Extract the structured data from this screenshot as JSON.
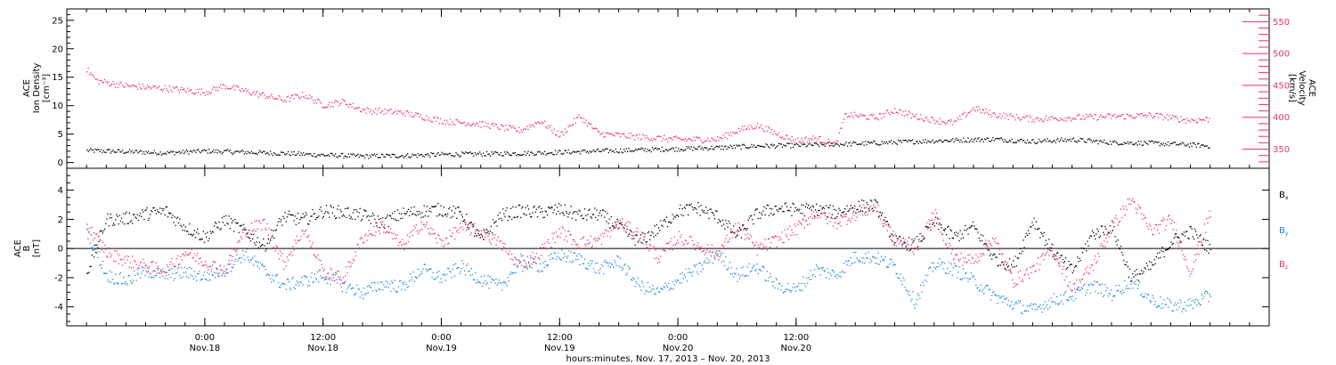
{
  "chart_data": [
    {
      "type": "scatter",
      "panel": "top",
      "ylabel_lines": [
        "ACE",
        "Ion Density",
        "[cm⁻³]"
      ],
      "ylim": [
        -1,
        27
      ],
      "yticks": [
        0,
        5,
        10,
        15,
        20,
        25
      ],
      "y2label_lines": [
        "ACE",
        "Velocity",
        "[km/s]"
      ],
      "y2lim": [
        320,
        570
      ],
      "y2ticks": [
        350,
        400,
        450,
        500,
        550
      ],
      "series": [
        {
          "axis": "left",
          "color": "#000000",
          "points": [
            [
              0,
              2.2
            ],
            [
              4,
              2.0
            ],
            [
              8,
              1.8
            ],
            [
              12,
              2.1
            ],
            [
              16,
              1.9
            ],
            [
              20,
              1.7
            ],
            [
              24,
              1.4
            ],
            [
              28,
              1.2
            ],
            [
              32,
              1.3
            ],
            [
              36,
              1.5
            ],
            [
              40,
              1.6
            ],
            [
              44,
              1.7
            ],
            [
              48,
              1.9
            ],
            [
              52,
              2.1
            ],
            [
              56,
              2.3
            ],
            [
              60,
              2.5
            ],
            [
              64,
              2.7
            ],
            [
              68,
              3.0
            ],
            [
              72,
              3.1
            ],
            [
              76,
              3.3
            ],
            [
              80,
              3.5
            ],
            [
              84,
              3.8
            ],
            [
              88,
              4.0
            ],
            [
              92,
              4.2
            ],
            [
              96,
              3.8
            ],
            [
              100,
              4.1
            ],
            [
              104,
              3.6
            ],
            [
              108,
              3.5
            ],
            [
              112,
              3.2
            ],
            [
              114,
              3.0
            ]
          ]
        },
        {
          "axis": "right",
          "color": "#ee3366",
          "points": [
            [
              0,
              475
            ],
            [
              1,
              458
            ],
            [
              4,
              450
            ],
            [
              8,
              446
            ],
            [
              12,
              440
            ],
            [
              14,
              450
            ],
            [
              16,
              442
            ],
            [
              20,
              428
            ],
            [
              22,
              436
            ],
            [
              24,
              420
            ],
            [
              26,
              425
            ],
            [
              28,
              412
            ],
            [
              32,
              408
            ],
            [
              34,
              402
            ],
            [
              36,
              395
            ],
            [
              40,
              390
            ],
            [
              44,
              380
            ],
            [
              46,
              395
            ],
            [
              48,
              372
            ],
            [
              50,
              402
            ],
            [
              52,
              375
            ],
            [
              56,
              370
            ],
            [
              60,
              366
            ],
            [
              64,
              366
            ],
            [
              66,
              380
            ],
            [
              68,
              388
            ],
            [
              70,
              375
            ],
            [
              72,
              364
            ],
            [
              74,
              368
            ],
            [
              76,
              358
            ],
            [
              77,
              405
            ],
            [
              80,
              400
            ],
            [
              82,
              412
            ],
            [
              84,
              402
            ],
            [
              86,
              396
            ],
            [
              88,
              392
            ],
            [
              90,
              415
            ],
            [
              92,
              405
            ],
            [
              96,
              398
            ],
            [
              100,
              400
            ],
            [
              104,
              402
            ],
            [
              108,
              404
            ],
            [
              112,
              396
            ],
            [
              114,
              398
            ]
          ]
        }
      ]
    },
    {
      "type": "scatter",
      "panel": "bottom",
      "ylabel_lines": [
        "ACE",
        "B",
        "[nT]"
      ],
      "ylim": [
        -5.3,
        5.5
      ],
      "yticks": [
        -4,
        -2,
        0,
        2,
        4
      ],
      "zero_line": true,
      "series": [
        {
          "name": "B",
          "sub": "x",
          "color": "#000000",
          "points": [
            [
              0,
              -1.6
            ],
            [
              2,
              2.0
            ],
            [
              4,
              2.1
            ],
            [
              6,
              2.4
            ],
            [
              8,
              2.6
            ],
            [
              10,
              1.5
            ],
            [
              12,
              0.8
            ],
            [
              14,
              2.0
            ],
            [
              16,
              1.2
            ],
            [
              18,
              0.2
            ],
            [
              20,
              2.2
            ],
            [
              22,
              2.0
            ],
            [
              24,
              2.6
            ],
            [
              26,
              2.5
            ],
            [
              28,
              2.3
            ],
            [
              30,
              1.8
            ],
            [
              32,
              2.4
            ],
            [
              34,
              2.6
            ],
            [
              36,
              2.7
            ],
            [
              38,
              2.4
            ],
            [
              40,
              0.6
            ],
            [
              42,
              2.3
            ],
            [
              44,
              2.6
            ],
            [
              46,
              2.5
            ],
            [
              48,
              2.7
            ],
            [
              50,
              2.3
            ],
            [
              52,
              2.4
            ],
            [
              54,
              1.5
            ],
            [
              56,
              0.5
            ],
            [
              58,
              1.4
            ],
            [
              60,
              2.6
            ],
            [
              62,
              2.8
            ],
            [
              64,
              2.2
            ],
            [
              66,
              0.9
            ],
            [
              68,
              2.4
            ],
            [
              70,
              2.8
            ],
            [
              72,
              2.7
            ],
            [
              74,
              2.7
            ],
            [
              76,
              2.5
            ],
            [
              78,
              2.9
            ],
            [
              80,
              3.0
            ],
            [
              82,
              0.5
            ],
            [
              84,
              0.3
            ],
            [
              86,
              1.8
            ],
            [
              88,
              0.8
            ],
            [
              90,
              1.5
            ],
            [
              92,
              -0.6
            ],
            [
              94,
              -1.2
            ],
            [
              96,
              2.0
            ],
            [
              98,
              -0.2
            ],
            [
              100,
              -1.5
            ],
            [
              102,
              1.0
            ],
            [
              104,
              1.5
            ],
            [
              106,
              -2.0
            ],
            [
              108,
              -1.2
            ],
            [
              110,
              0.5
            ],
            [
              112,
              1.2
            ],
            [
              114,
              0.0
            ]
          ]
        },
        {
          "name": "B",
          "sub": "y",
          "color": "#1f85e0",
          "points": [
            [
              0,
              1.3
            ],
            [
              2,
              -1.8
            ],
            [
              4,
              -2.2
            ],
            [
              6,
              -1.5
            ],
            [
              8,
              -1.8
            ],
            [
              10,
              -1.6
            ],
            [
              12,
              -1.9
            ],
            [
              14,
              -1.4
            ],
            [
              16,
              -0.3
            ],
            [
              18,
              -1.5
            ],
            [
              20,
              -2.5
            ],
            [
              22,
              -2.2
            ],
            [
              24,
              -1.8
            ],
            [
              26,
              -2.5
            ],
            [
              28,
              -3.0
            ],
            [
              30,
              -2.4
            ],
            [
              32,
              -2.6
            ],
            [
              34,
              -1.4
            ],
            [
              36,
              -2.0
            ],
            [
              38,
              -1.2
            ],
            [
              40,
              -2.1
            ],
            [
              42,
              -2.6
            ],
            [
              44,
              -0.8
            ],
            [
              46,
              -1.2
            ],
            [
              48,
              -0.4
            ],
            [
              50,
              -0.7
            ],
            [
              52,
              -1.4
            ],
            [
              54,
              -0.8
            ],
            [
              56,
              -2.5
            ],
            [
              58,
              -3.0
            ],
            [
              60,
              -2.1
            ],
            [
              62,
              -1.4
            ],
            [
              64,
              -0.3
            ],
            [
              66,
              -1.8
            ],
            [
              68,
              -1.2
            ],
            [
              70,
              -2.5
            ],
            [
              72,
              -2.8
            ],
            [
              74,
              -1.4
            ],
            [
              76,
              -1.8
            ],
            [
              78,
              -0.5
            ],
            [
              80,
              -0.6
            ],
            [
              82,
              -1.2
            ],
            [
              84,
              -3.6
            ],
            [
              86,
              -1.0
            ],
            [
              88,
              -1.4
            ],
            [
              90,
              -2.2
            ],
            [
              92,
              -3.2
            ],
            [
              94,
              -3.8
            ],
            [
              96,
              -4.2
            ],
            [
              98,
              -3.5
            ],
            [
              100,
              -3.2
            ],
            [
              102,
              -2.5
            ],
            [
              104,
              -3.1
            ],
            [
              106,
              -2.2
            ],
            [
              108,
              -3.5
            ],
            [
              110,
              -3.9
            ],
            [
              112,
              -3.8
            ],
            [
              114,
              -3.2
            ]
          ]
        },
        {
          "name": "B",
          "sub": "z",
          "color": "#ee3366",
          "points": [
            [
              0,
              1.6
            ],
            [
              2,
              -0.2
            ],
            [
              4,
              -0.8
            ],
            [
              6,
              -1.2
            ],
            [
              8,
              -1.5
            ],
            [
              10,
              -0.2
            ],
            [
              12,
              -0.9
            ],
            [
              14,
              -1.5
            ],
            [
              16,
              1.2
            ],
            [
              18,
              1.8
            ],
            [
              20,
              -1.0
            ],
            [
              22,
              1.4
            ],
            [
              24,
              -1.6
            ],
            [
              26,
              -2.0
            ],
            [
              28,
              0.8
            ],
            [
              30,
              1.6
            ],
            [
              32,
              0.2
            ],
            [
              34,
              1.8
            ],
            [
              36,
              0.4
            ],
            [
              38,
              1.5
            ],
            [
              40,
              1.2
            ],
            [
              42,
              0.3
            ],
            [
              44,
              -1.2
            ],
            [
              46,
              -0.2
            ],
            [
              48,
              1.2
            ],
            [
              50,
              0.4
            ],
            [
              52,
              0.6
            ],
            [
              54,
              1.8
            ],
            [
              56,
              1.0
            ],
            [
              58,
              -0.6
            ],
            [
              60,
              0.8
            ],
            [
              62,
              0.2
            ],
            [
              64,
              -0.3
            ],
            [
              66,
              1.6
            ],
            [
              68,
              0.0
            ],
            [
              70,
              0.6
            ],
            [
              72,
              1.4
            ],
            [
              74,
              2.5
            ],
            [
              76,
              1.8
            ],
            [
              78,
              2.4
            ],
            [
              80,
              2.9
            ],
            [
              82,
              0.6
            ],
            [
              84,
              0.0
            ],
            [
              86,
              2.4
            ],
            [
              88,
              -0.6
            ],
            [
              90,
              -0.8
            ],
            [
              92,
              0.8
            ],
            [
              94,
              -2.2
            ],
            [
              96,
              -1.4
            ],
            [
              98,
              0.0
            ],
            [
              100,
              -2.8
            ],
            [
              102,
              -1.2
            ],
            [
              104,
              1.5
            ],
            [
              106,
              3.4
            ],
            [
              108,
              1.2
            ],
            [
              110,
              2.0
            ],
            [
              112,
              -1.6
            ],
            [
              114,
              2.5
            ]
          ]
        }
      ]
    }
  ],
  "x_axis": {
    "xlim": [
      -2,
      120
    ],
    "ticks": [
      {
        "x": 12,
        "time": "0:00",
        "date": "Nov.18"
      },
      {
        "x": 24,
        "time": "12:00",
        "date": "Nov.18"
      },
      {
        "x": 36,
        "time": "0:00",
        "date": "Nov.19"
      },
      {
        "x": 48,
        "time": "12:00",
        "date": "Nov.19"
      },
      {
        "x": 60,
        "time": "0:00",
        "date": "Nov.20"
      },
      {
        "x": 72,
        "time": "12:00",
        "date": "Nov.20"
      }
    ],
    "minor_step": 2,
    "label": "hours:minutes, Nov. 17, 2013 – Nov. 20, 2013"
  },
  "colors": {
    "black": "#000000",
    "pink": "#ee3366",
    "blue": "#1f85e0",
    "axis": "#000000"
  }
}
